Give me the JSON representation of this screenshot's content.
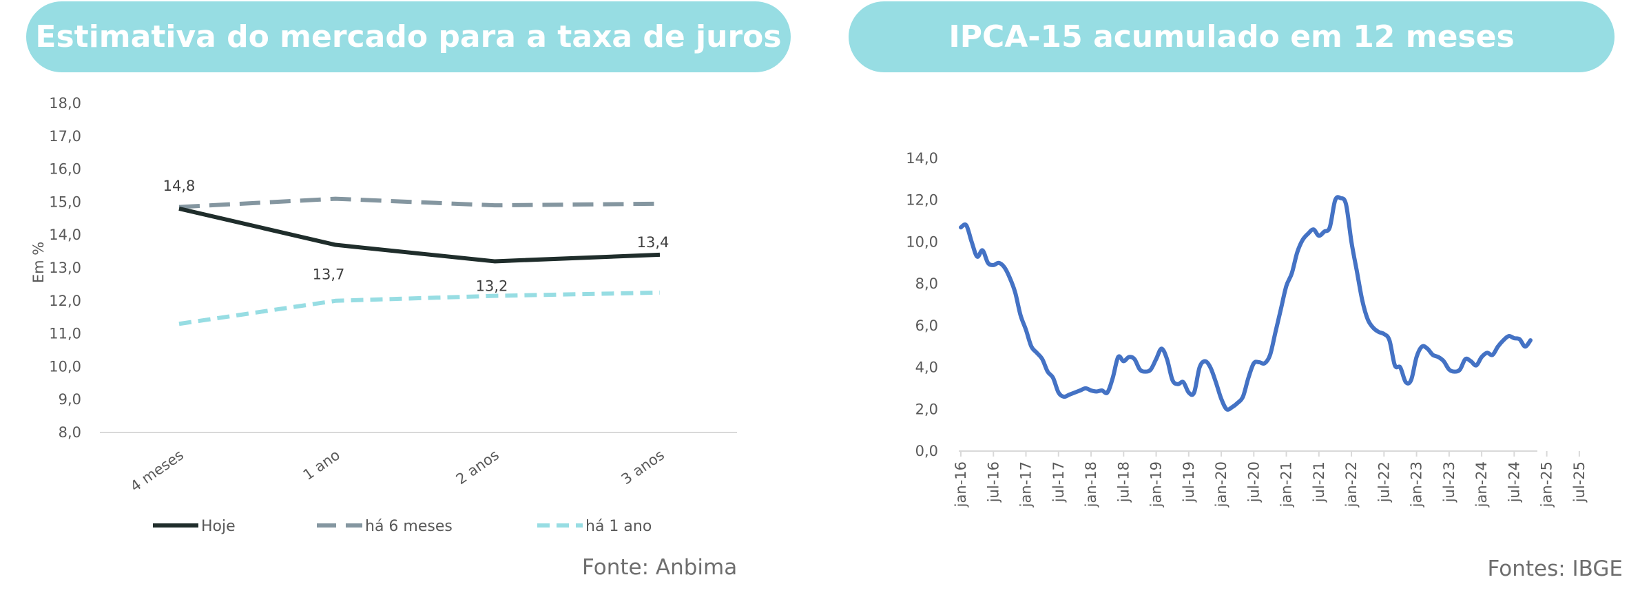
{
  "chart_data": [
    {
      "type": "line",
      "title": "Estimativa do mercado para a taxa de juros",
      "ylabel": "Em %",
      "ylim": [
        8,
        18
      ],
      "yticks": [
        "8,0",
        "9,0",
        "10,0",
        "11,0",
        "12,0",
        "13,0",
        "14,0",
        "15,0",
        "16,0",
        "17,0",
        "18,0"
      ],
      "categories": [
        "4 meses",
        "1 ano",
        "2 anos",
        "3 anos"
      ],
      "series": [
        {
          "name": "Hoje",
          "values": [
            14.8,
            13.7,
            13.2,
            13.4
          ],
          "color": "#1f2d2b",
          "dash": "solid",
          "labels": [
            "14,8",
            "13,7",
            "13,2",
            "13,4"
          ]
        },
        {
          "name": "há 6 meses",
          "values": [
            14.85,
            15.1,
            14.9,
            14.95
          ],
          "color": "#8496a0",
          "dash": "dashed"
        },
        {
          "name": "há 1 ano",
          "values": [
            11.3,
            12.0,
            12.15,
            12.25
          ],
          "color": "#97dde3",
          "dash": "dashed"
        }
      ],
      "legend": "bottom",
      "source": "Fonte: Anbima"
    },
    {
      "type": "line",
      "title": "IPCA-15 acumulado em 12 meses",
      "ylim": [
        0,
        14
      ],
      "yticks": [
        "0,0",
        "2,0",
        "4,0",
        "6,0",
        "8,0",
        "10,0",
        "12,0",
        "14,0"
      ],
      "xticks": [
        "jan-16",
        "jul-16",
        "jan-17",
        "jul-17",
        "jan-18",
        "jul-18",
        "jan-19",
        "jul-19",
        "jan-20",
        "jul-20",
        "jan-21",
        "jul-21",
        "jan-22",
        "jul-22",
        "jan-23",
        "jul-23",
        "jan-24",
        "jul-24",
        "jan-25",
        "jul-25"
      ],
      "x_start": "2016-01",
      "x_end": "2025-08",
      "series": [
        {
          "name": "",
          "color": "#4472c4",
          "values": [
            10.7,
            10.8,
            10.0,
            9.3,
            9.6,
            9.0,
            8.9,
            9.0,
            8.8,
            8.3,
            7.6,
            6.5,
            5.8,
            5.0,
            4.7,
            4.4,
            3.8,
            3.5,
            2.8,
            2.6,
            2.7,
            2.8,
            2.9,
            3.0,
            2.9,
            2.85,
            2.9,
            2.8,
            3.5,
            4.5,
            4.3,
            4.5,
            4.4,
            3.9,
            3.8,
            3.9,
            4.4,
            4.9,
            4.4,
            3.4,
            3.2,
            3.3,
            2.8,
            2.8,
            4.0,
            4.3,
            4.0,
            3.3,
            2.5,
            2.0,
            2.1,
            2.3,
            2.6,
            3.5,
            4.2,
            4.25,
            4.2,
            4.6,
            5.7,
            6.8,
            7.9,
            8.5,
            9.5,
            10.1,
            10.4,
            10.6,
            10.3,
            10.5,
            10.7,
            12.0,
            12.1,
            11.8,
            10.0,
            8.6,
            7.2,
            6.3,
            5.9,
            5.7,
            5.6,
            5.3,
            4.1,
            4.0,
            3.3,
            3.4,
            4.5,
            5.0,
            4.9,
            4.6,
            4.5,
            4.3,
            3.9,
            3.8,
            3.9,
            4.4,
            4.3,
            4.1,
            4.5,
            4.7,
            4.6,
            5.0,
            5.3,
            5.5,
            5.4,
            5.35,
            5.0,
            5.3
          ]
        }
      ],
      "source": "Fontes: IBGE"
    }
  ]
}
